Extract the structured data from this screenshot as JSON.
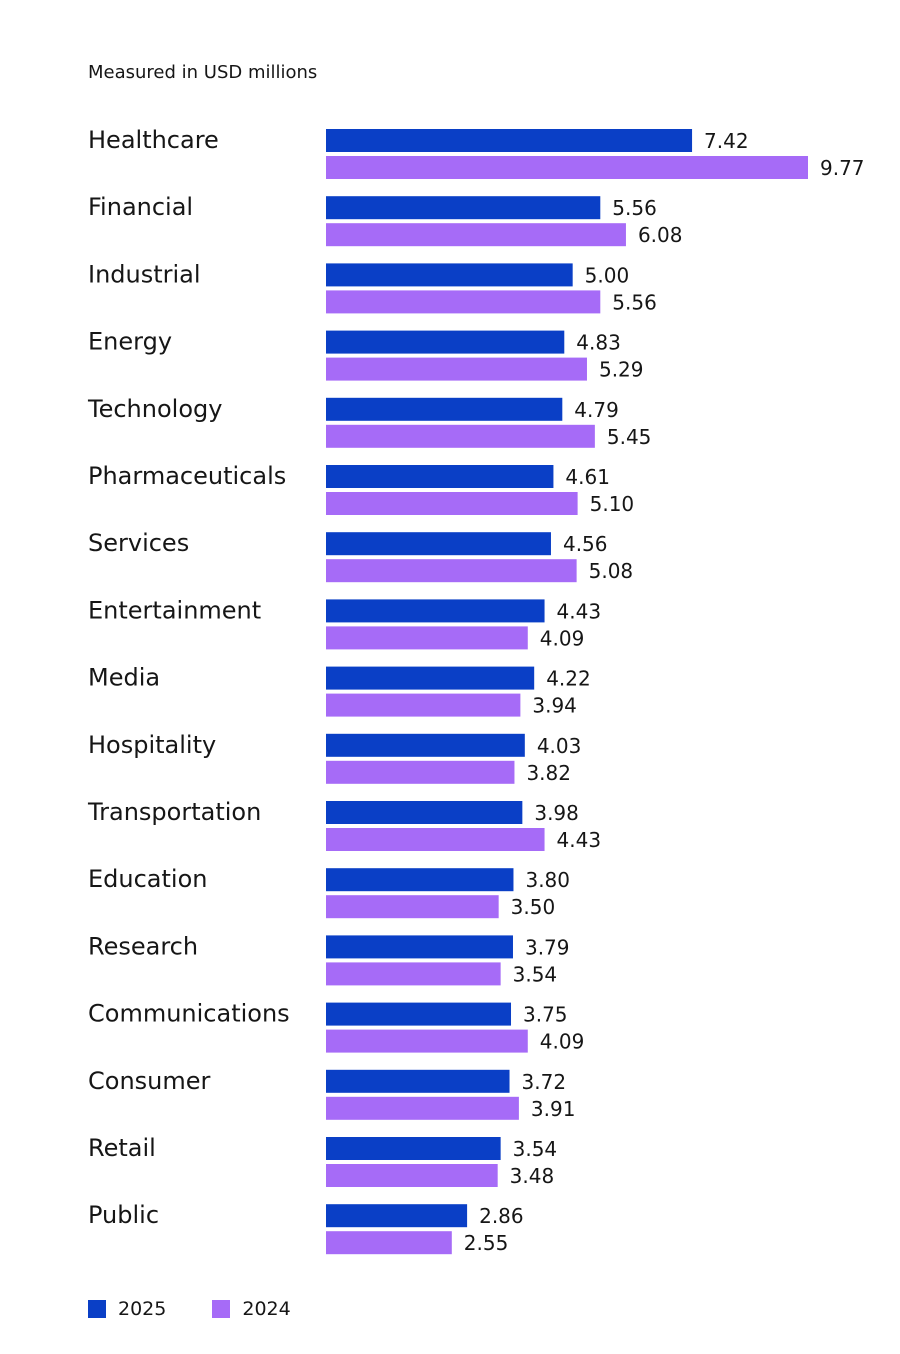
{
  "subtitle": "Measured in USD millions",
  "colors": {
    "s2025": "#0a3fc6",
    "s2024": "#a66bf7",
    "text": "#161616"
  },
  "legend": [
    {
      "label": "2025",
      "color": "#0a3fc6"
    },
    {
      "label": "2024",
      "color": "#a66bf7"
    }
  ],
  "chart_data": {
    "type": "bar",
    "orientation": "horizontal",
    "title": "",
    "subtitle": "Measured in USD millions",
    "xlabel": "",
    "ylabel": "",
    "grid": false,
    "legend_position": "bottom-left",
    "xlim": [
      0,
      9.77
    ],
    "categories": [
      "Healthcare",
      "Financial",
      "Industrial",
      "Energy",
      "Technology",
      "Pharmaceuticals",
      "Services",
      "Entertainment",
      "Media",
      "Hospitality",
      "Transportation",
      "Education",
      "Research",
      "Communications",
      "Consumer",
      "Retail",
      "Public"
    ],
    "series": [
      {
        "name": "2025",
        "color": "#0a3fc6",
        "values": [
          7.42,
          5.56,
          5.0,
          4.83,
          4.79,
          4.61,
          4.56,
          4.43,
          4.22,
          4.03,
          3.98,
          3.8,
          3.79,
          3.75,
          3.72,
          3.54,
          2.86
        ],
        "labels": [
          "7.42",
          "5.56",
          "5.00",
          "4.83",
          "4.79",
          "4.61",
          "4.56",
          "4.43",
          "4.22",
          "4.03",
          "3.98",
          "3.80",
          "3.79",
          "3.75",
          "3.72",
          "3.54",
          "2.86"
        ]
      },
      {
        "name": "2024",
        "color": "#a66bf7",
        "values": [
          9.77,
          6.08,
          5.56,
          5.29,
          5.45,
          5.1,
          5.08,
          4.09,
          3.94,
          3.82,
          4.43,
          3.5,
          3.54,
          4.09,
          3.91,
          3.48,
          2.55
        ],
        "labels": [
          "9.77",
          "6.08",
          "5.56",
          "5.29",
          "5.45",
          "5.10",
          "5.08",
          "4.09",
          "3.94",
          "3.82",
          "4.43",
          "3.50",
          "3.54",
          "4.09",
          "3.91",
          "3.48",
          "2.55"
        ]
      }
    ]
  }
}
